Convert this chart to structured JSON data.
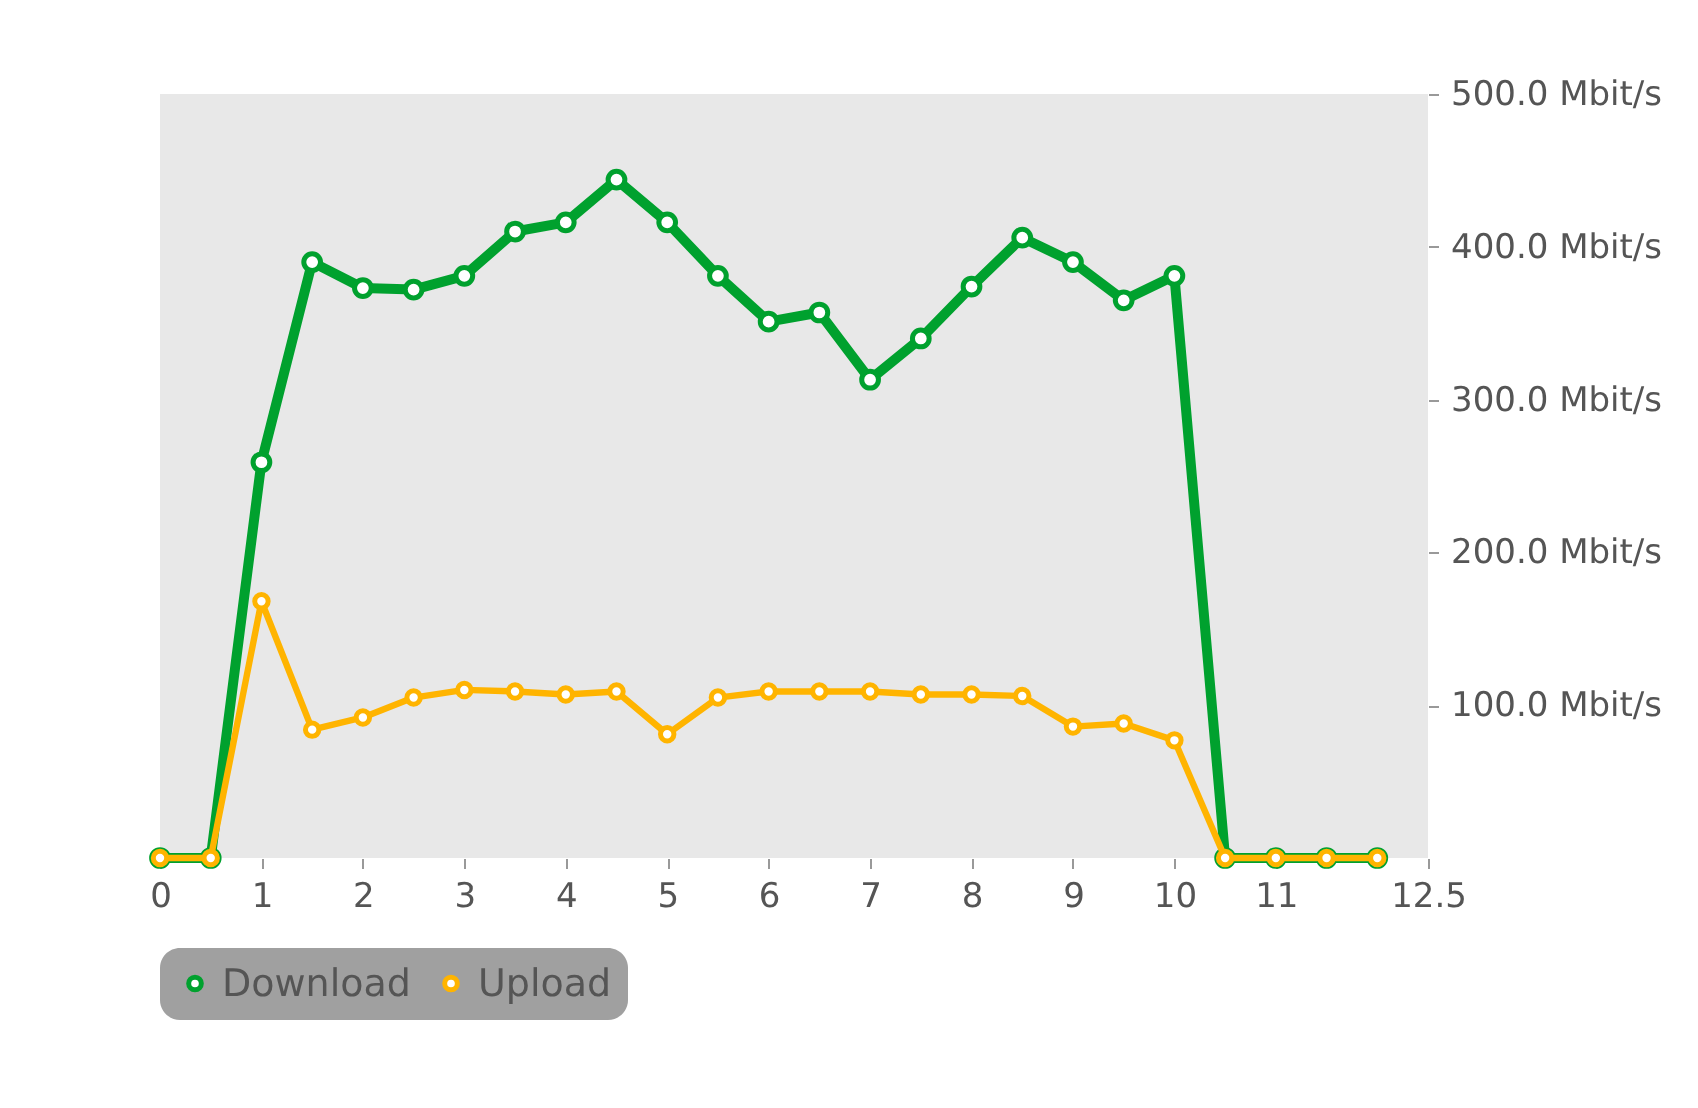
{
  "chart_data": {
    "type": "line",
    "x": [
      0,
      0.5,
      1,
      1.5,
      2,
      2.5,
      3,
      3.5,
      4,
      4.5,
      5,
      5.5,
      6,
      6.5,
      7,
      7.5,
      8,
      8.5,
      9,
      9.5,
      10,
      10.5,
      11,
      11.5,
      12
    ],
    "series": [
      {
        "name": "Download",
        "color": "#00a12e",
        "values": [
          0,
          0,
          259,
          390,
          373,
          372,
          381,
          410,
          416,
          444,
          416,
          381,
          351,
          357,
          313,
          340,
          374,
          406,
          390,
          365,
          381,
          0,
          0,
          0,
          0
        ]
      },
      {
        "name": "Upload",
        "color": "#ffb400",
        "values": [
          0,
          0,
          168,
          84,
          92,
          105,
          110,
          109,
          107,
          109,
          81,
          105,
          109,
          109,
          109,
          107,
          107,
          106,
          86,
          88,
          77,
          0,
          0,
          0,
          0
        ]
      }
    ],
    "xlim": [
      0,
      12.5
    ],
    "xticks": [
      0,
      1,
      2,
      3,
      4,
      5,
      6,
      7,
      8,
      9,
      10,
      11,
      {
        "value": 12.5,
        "label": "12.5"
      }
    ],
    "ylim": [
      0,
      500
    ],
    "yticks": [
      {
        "value": 100,
        "label": "100.0 Mbit/s"
      },
      {
        "value": 200,
        "label": "200.0 Mbit/s"
      },
      {
        "value": 300,
        "label": "300.0 Mbit/s"
      },
      {
        "value": 400,
        "label": "400.0 Mbit/s"
      },
      {
        "value": 500,
        "label": "500.0 Mbit/s"
      }
    ],
    "marker": "circle",
    "line_style": "solid",
    "legend": "bottom",
    "grid": false
  }
}
